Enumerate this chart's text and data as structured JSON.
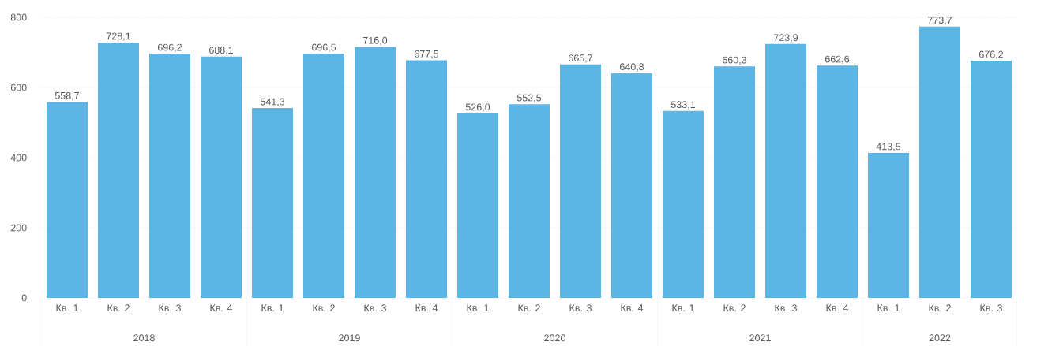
{
  "chart_data": {
    "type": "bar",
    "categories": [
      "Кв. 1",
      "Кв. 2",
      "Кв. 3",
      "Кв. 4",
      "Кв. 1",
      "Кв. 2",
      "Кв. 3",
      "Кв. 4",
      "Кв. 1",
      "Кв. 2",
      "Кв. 3",
      "Кв. 4",
      "Кв. 1",
      "Кв. 2",
      "Кв. 3",
      "Кв. 4",
      "Кв. 1",
      "Кв. 2",
      "Кв. 3"
    ],
    "values": [
      558.7,
      728.1,
      696.2,
      688.1,
      541.3,
      696.5,
      716.0,
      677.5,
      526.0,
      552.5,
      665.7,
      640.8,
      533.1,
      660.3,
      723.9,
      662.6,
      413.5,
      773.7,
      676.2
    ],
    "value_labels": [
      "558,7",
      "728,1",
      "696,2",
      "688,1",
      "541,3",
      "696,5",
      "716,0",
      "677,5",
      "526,0",
      "552,5",
      "665,7",
      "640,8",
      "533,1",
      "660,3",
      "723,9",
      "662,6",
      "413,5",
      "773,7",
      "676,2"
    ],
    "color": "#5db5e5",
    "ylim": [
      0,
      800
    ],
    "yticks": [
      0,
      200,
      400,
      600,
      800
    ],
    "grid": "y",
    "annotations": [
      "2018",
      "2019",
      "2020",
      "2021",
      "2022"
    ]
  }
}
